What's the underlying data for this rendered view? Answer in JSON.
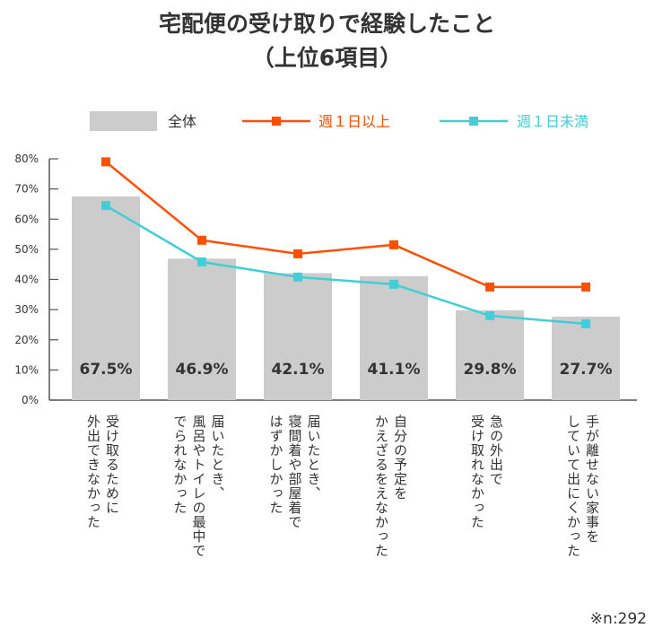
{
  "chart_data": {
    "type": "bar+line",
    "title": "宅配便の受け取りで経験したこと\n（上位6項目）",
    "categories": [
      "受け取るために\n外出できなかった",
      "届いたとき、\n風呂やトイレの最中で\nでられなかった",
      "届いたとき、\n寝間着や部屋着で\nはずかしかった",
      "自分の予定を\nかえざるをえなかった",
      "急の外出で\n受け取れなかった",
      "手が離せない家事を\nしていて出にくかった"
    ],
    "series": [
      {
        "name": "全体",
        "kind": "bar",
        "color": "#cccccc",
        "values": [
          67.5,
          46.9,
          42.1,
          41.1,
          29.8,
          27.7
        ],
        "labels": [
          "67.5%",
          "46.9%",
          "42.1%",
          "41.1%",
          "29.8%",
          "27.7%"
        ]
      },
      {
        "name": "週１日以上",
        "kind": "line",
        "color": "#ff5000",
        "values": [
          79,
          53,
          48.5,
          51.5,
          37.5,
          37.5
        ]
      },
      {
        "name": "週１日未満",
        "kind": "line",
        "color": "#40cfd6",
        "values": [
          64.5,
          45.8,
          40.8,
          38.4,
          28,
          25.3
        ]
      }
    ],
    "ylim": [
      0,
      80
    ],
    "yticks": [
      "0%",
      "10%",
      "20%",
      "30%",
      "40%",
      "50%",
      "60%",
      "70%",
      "80%"
    ],
    "legend": "top",
    "grid": false,
    "note": "※n:292"
  }
}
